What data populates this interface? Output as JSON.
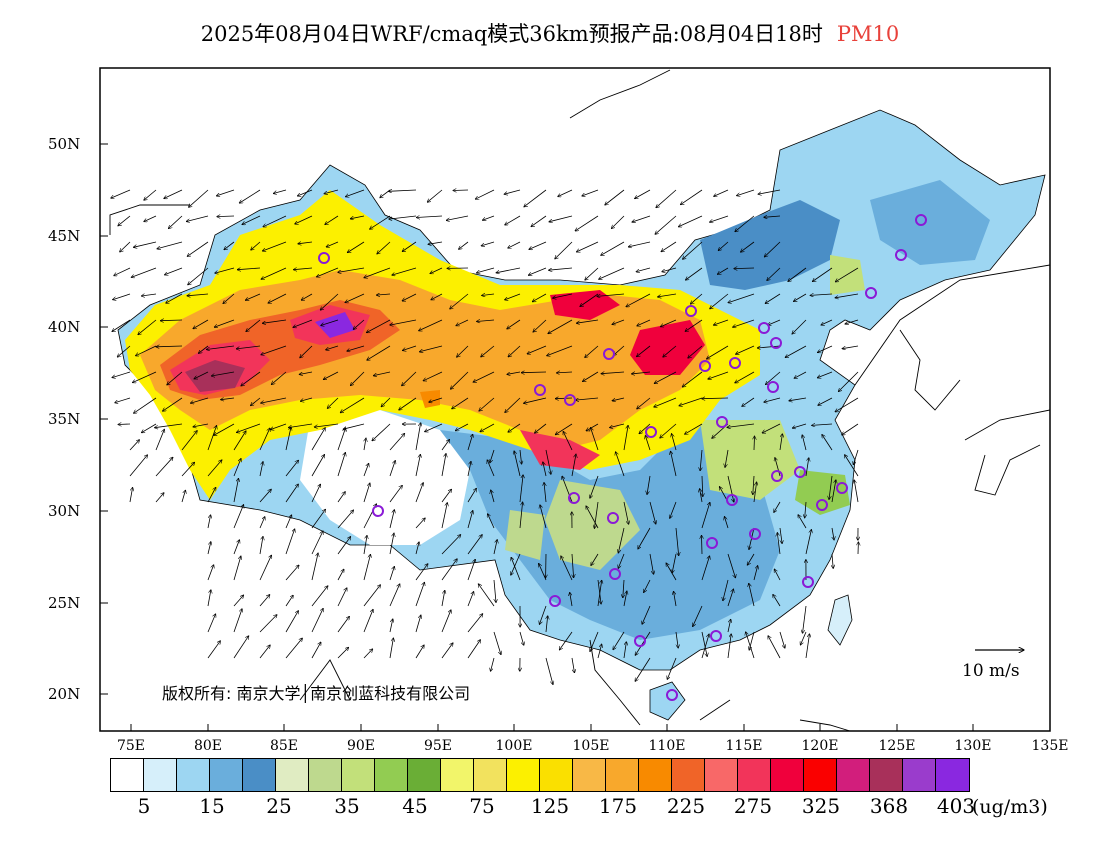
{
  "title": {
    "main": "2025年08月04日WRF/cmaq模式36km预报产品:08月04日18时",
    "pollutant": "PM10",
    "pollutant_color": "#e8413a"
  },
  "axes": {
    "lat_labels": [
      "50N",
      "45N",
      "40N",
      "35N",
      "30N",
      "25N",
      "20N"
    ],
    "lon_labels": [
      "75E",
      "80E",
      "85E",
      "90E",
      "95E",
      "100E",
      "105E",
      "110E",
      "115E",
      "120E",
      "125E",
      "130E",
      "135E"
    ]
  },
  "legend": {
    "colors": [
      "#ffffff",
      "#d6effa",
      "#9dd6f2",
      "#6aaedc",
      "#4a8ec6",
      "#e0ecc2",
      "#bed98e",
      "#c2e07a",
      "#92cc52",
      "#6aae36",
      "#f2f56a",
      "#f2e25e",
      "#fcf000",
      "#fae000",
      "#f8b846",
      "#f8a82c",
      "#f88a00",
      "#f06428",
      "#f86868",
      "#f2345a",
      "#f0003c",
      "#fa0000",
      "#d21e7c",
      "#a8305a",
      "#9a3ccc",
      "#8a28e0"
    ],
    "tick_labels": [
      "5",
      "15",
      "25",
      "35",
      "45",
      "75",
      "125",
      "175",
      "225",
      "275",
      "325",
      "368",
      "403"
    ],
    "units": "(ug/m3)"
  },
  "copyright": "版权所有: 南京大学│南京创蓝科技有限公司",
  "wind_reference": "10 m/s"
}
